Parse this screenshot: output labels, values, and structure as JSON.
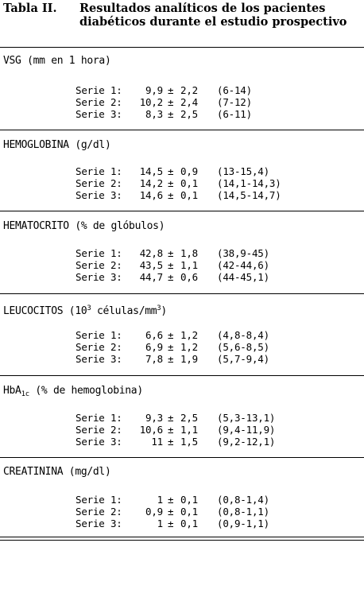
{
  "title": {
    "label": "Tabla II.",
    "text": "Resultados analíticos de los pacientes diabéticos durante el estudio prospectivo"
  },
  "sections": [
    {
      "heading": "VSG (mm en 1 hora)",
      "rows": [
        {
          "serie": "Serie 1:",
          "mean": "9,9",
          "pm": "±",
          "sd": "2,2",
          "range": "(6-14)"
        },
        {
          "serie": "Serie 2:",
          "mean": "10,2",
          "pm": "±",
          "sd": "2,4",
          "range": "(7-12)"
        },
        {
          "serie": "Serie 3:",
          "mean": "8,3",
          "pm": "±",
          "sd": "2,5",
          "range": "(6-11)"
        }
      ]
    },
    {
      "heading": "HEMOGLOBINA (g/dl)",
      "rows": [
        {
          "serie": "Serie 1:",
          "mean": "14,5",
          "pm": "±",
          "sd": "0,9",
          "range": "(13-15,4)"
        },
        {
          "serie": "Serie 2:",
          "mean": "14,2",
          "pm": "±",
          "sd": "0,1",
          "range": "(14,1-14,3)"
        },
        {
          "serie": "Serie 3:",
          "mean": "14,6",
          "pm": "±",
          "sd": "0,1",
          "range": "(14,5-14,7)"
        }
      ]
    },
    {
      "heading": "HEMATOCRITO (% de glóbulos)",
      "rows": [
        {
          "serie": "Serie 1:",
          "mean": "42,8",
          "pm": "±",
          "sd": "1,8",
          "range": "(38,9-45)"
        },
        {
          "serie": "Serie 2:",
          "mean": "43,5",
          "pm": "±",
          "sd": "1,1",
          "range": "(42-44,6)"
        },
        {
          "serie": "Serie 3:",
          "mean": "44,7",
          "pm": "±",
          "sd": "0,6",
          "range": "(44-45,1)"
        }
      ]
    },
    {
      "heading_pre": "LEUCOCITOS (10",
      "heading_sup": "3",
      "heading_mid": " células/mm",
      "heading_sup2": "3",
      "heading_post": ")",
      "rows": [
        {
          "serie": "Serie 1:",
          "mean": "6,6",
          "pm": "±",
          "sd": "1,2",
          "range": "(4,8-8,4)"
        },
        {
          "serie": "Serie 2:",
          "mean": "6,9",
          "pm": "±",
          "sd": "1,2",
          "range": "(5,6-8,5)"
        },
        {
          "serie": "Serie 3:",
          "mean": "7,8",
          "pm": "±",
          "sd": "1,9",
          "range": "(5,7-9,4)"
        }
      ]
    },
    {
      "heading_pre": "HbA",
      "heading_sub": "1c",
      "heading_post": " (% de hemoglobina)",
      "rows": [
        {
          "serie": "Serie 1:",
          "mean": "9,3",
          "pm": "±",
          "sd": "2,5",
          "range": "(5,3-13,1)"
        },
        {
          "serie": "Serie 2:",
          "mean": "10,6",
          "pm": "±",
          "sd": "1,1",
          "range": "(9,4-11,9)"
        },
        {
          "serie": "Serie 3:",
          "mean": "11",
          "pm": "±",
          "sd": "1,5",
          "range": "(9,2-12,1)"
        }
      ]
    },
    {
      "heading": "CREATININA (mg/dl)",
      "rows": [
        {
          "serie": "Serie 1:",
          "mean": "1",
          "pm": "±",
          "sd": "0,1",
          "range": "(0,8-1,4)"
        },
        {
          "serie": "Serie 2:",
          "mean": "0,9",
          "pm": "±",
          "sd": "0,1",
          "range": "(0,8-1,1)"
        },
        {
          "serie": "Serie 3:",
          "mean": "1",
          "pm": "±",
          "sd": "0,1",
          "range": "(0,9-1,1)"
        }
      ]
    }
  ]
}
